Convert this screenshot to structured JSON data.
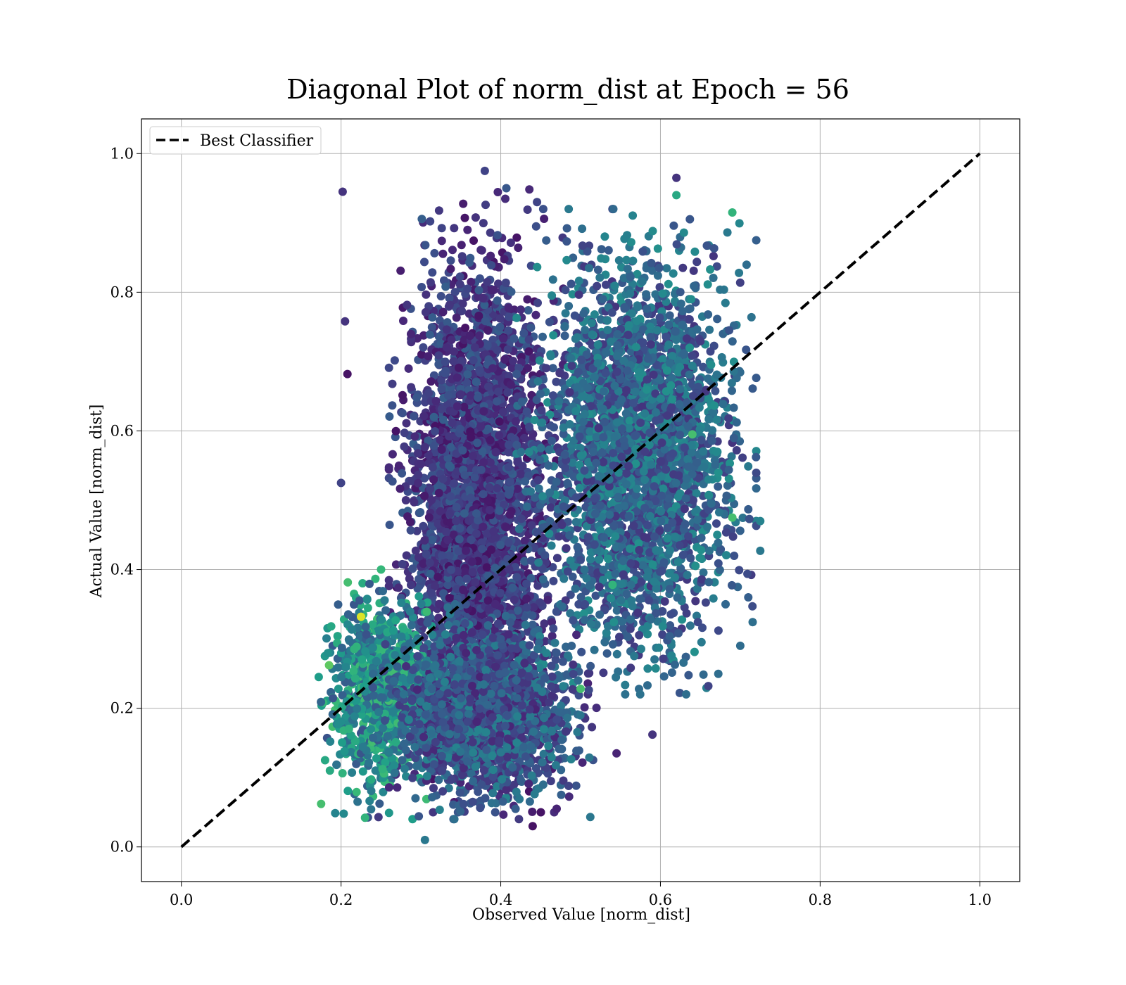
{
  "chart_data": {
    "type": "scatter",
    "title": "Diagonal Plot of norm_dist at Epoch = 56",
    "xlabel": "Observed Value [norm_dist]",
    "ylabel": "Actual Value [norm_dist]",
    "xlim": [
      -0.05,
      1.05
    ],
    "ylim": [
      -0.05,
      1.05
    ],
    "xticks": [
      "0.0",
      "0.2",
      "0.4",
      "0.6",
      "0.8",
      "1.0"
    ],
    "yticks": [
      "0.0",
      "0.2",
      "0.4",
      "0.6",
      "0.8",
      "1.0"
    ],
    "grid": true,
    "legend_position": "upper-left",
    "colormap": "viridis",
    "reference_line": {
      "name": "Best Classifier",
      "style": "dashed",
      "color": "#000000",
      "x": [
        0.0,
        1.0
      ],
      "y": [
        0.0,
        1.0
      ]
    },
    "series": [
      {
        "clusters": [
          {
            "x_range": [
              0.26,
              0.48
            ],
            "y_range": [
              0.05,
              0.95
            ],
            "color_range": [
              0.05,
              0.3
            ],
            "count": 3200
          },
          {
            "x_range": [
              0.42,
              0.72
            ],
            "y_range": [
              0.22,
              0.92
            ],
            "color_range": [
              0.15,
              0.5
            ],
            "count": 3000
          },
          {
            "x_range": [
              0.17,
              0.33
            ],
            "y_range": [
              0.04,
              0.4
            ],
            "color_range": [
              0.25,
              0.7
            ],
            "count": 900
          },
          {
            "x_range": [
              0.24,
              0.52
            ],
            "y_range": [
              0.04,
              0.35
            ],
            "color_range": [
              0.1,
              0.45
            ],
            "count": 1800
          }
        ],
        "points": [
          {
            "x": 0.202,
            "y": 0.945,
            "c": 0.15
          },
          {
            "x": 0.205,
            "y": 0.758,
            "c": 0.15
          },
          {
            "x": 0.208,
            "y": 0.682,
            "c": 0.05
          },
          {
            "x": 0.2,
            "y": 0.525,
            "c": 0.2
          },
          {
            "x": 0.305,
            "y": 0.01,
            "c": 0.4
          },
          {
            "x": 0.38,
            "y": 0.975,
            "c": 0.2
          },
          {
            "x": 0.62,
            "y": 0.965,
            "c": 0.15
          },
          {
            "x": 0.59,
            "y": 0.162,
            "c": 0.15
          },
          {
            "x": 0.725,
            "y": 0.47,
            "c": 0.45
          },
          {
            "x": 0.725,
            "y": 0.427,
            "c": 0.4
          },
          {
            "x": 0.72,
            "y": 0.875,
            "c": 0.3
          },
          {
            "x": 0.69,
            "y": 0.915,
            "c": 0.65
          },
          {
            "x": 0.69,
            "y": 0.475,
            "c": 0.7
          },
          {
            "x": 0.54,
            "y": 0.378,
            "c": 0.65
          },
          {
            "x": 0.545,
            "y": 0.135,
            "c": 0.1
          },
          {
            "x": 0.185,
            "y": 0.262,
            "c": 0.75
          },
          {
            "x": 0.175,
            "y": 0.062,
            "c": 0.7
          },
          {
            "x": 0.225,
            "y": 0.332,
            "c": 0.95
          },
          {
            "x": 0.23,
            "y": 0.042,
            "c": 0.65
          },
          {
            "x": 0.18,
            "y": 0.125,
            "c": 0.6
          },
          {
            "x": 0.172,
            "y": 0.245,
            "c": 0.55
          },
          {
            "x": 0.44,
            "y": 0.03,
            "c": 0.05
          },
          {
            "x": 0.47,
            "y": 0.055,
            "c": 0.1
          },
          {
            "x": 0.485,
            "y": 0.088,
            "c": 0.2
          },
          {
            "x": 0.5,
            "y": 0.228,
            "c": 0.7
          },
          {
            "x": 0.66,
            "y": 0.232,
            "c": 0.2
          },
          {
            "x": 0.7,
            "y": 0.29,
            "c": 0.35
          },
          {
            "x": 0.71,
            "y": 0.36,
            "c": 0.3
          },
          {
            "x": 0.64,
            "y": 0.595,
            "c": 0.7
          },
          {
            "x": 0.62,
            "y": 0.94,
            "c": 0.6
          }
        ]
      }
    ]
  }
}
